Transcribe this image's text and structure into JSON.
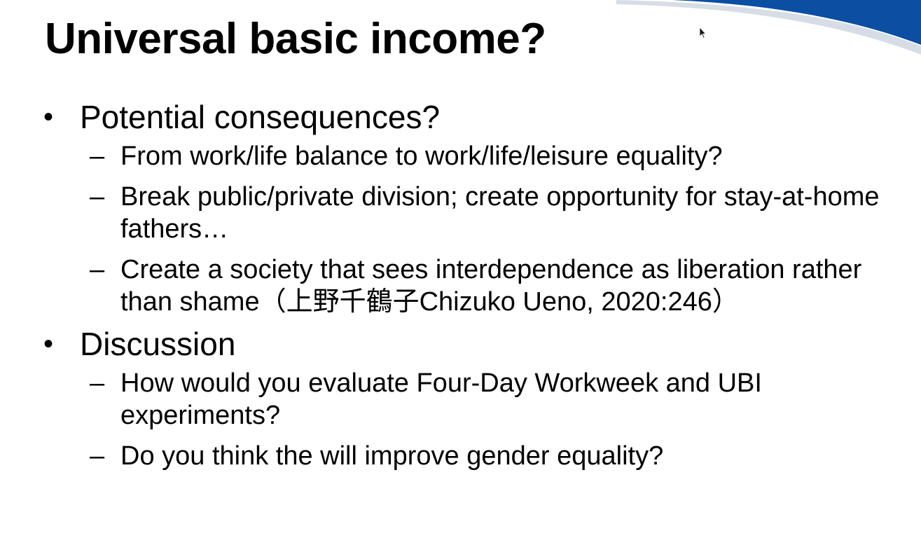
{
  "slide": {
    "title": "Universal basic income?",
    "bullets": [
      {
        "text": "Potential consequences?",
        "items": [
          "From work/life balance to work/life/leisure equality?",
          "Break public/private division; create opportunity for stay-at-home fathers…",
          "Create a society that sees interdependence as liberation rather than shame（上野千鶴子Chizuko Ueno, 2020:246）"
        ]
      },
      {
        "text": "Discussion",
        "items": [
          "How would you evaluate Four-Day Workweek and UBI experiments?",
          "Do you think the will improve gender equality?"
        ]
      }
    ],
    "bullet_marker": "•",
    "sub_marker": "–"
  },
  "colors": {
    "accent": "#0b4ea2",
    "accent_light": "#d7dde6",
    "text": "#000000",
    "background": "#ffffff"
  },
  "icons": {
    "cursor": "mouse-pointer-icon",
    "decoration": "corner-swoosh"
  }
}
